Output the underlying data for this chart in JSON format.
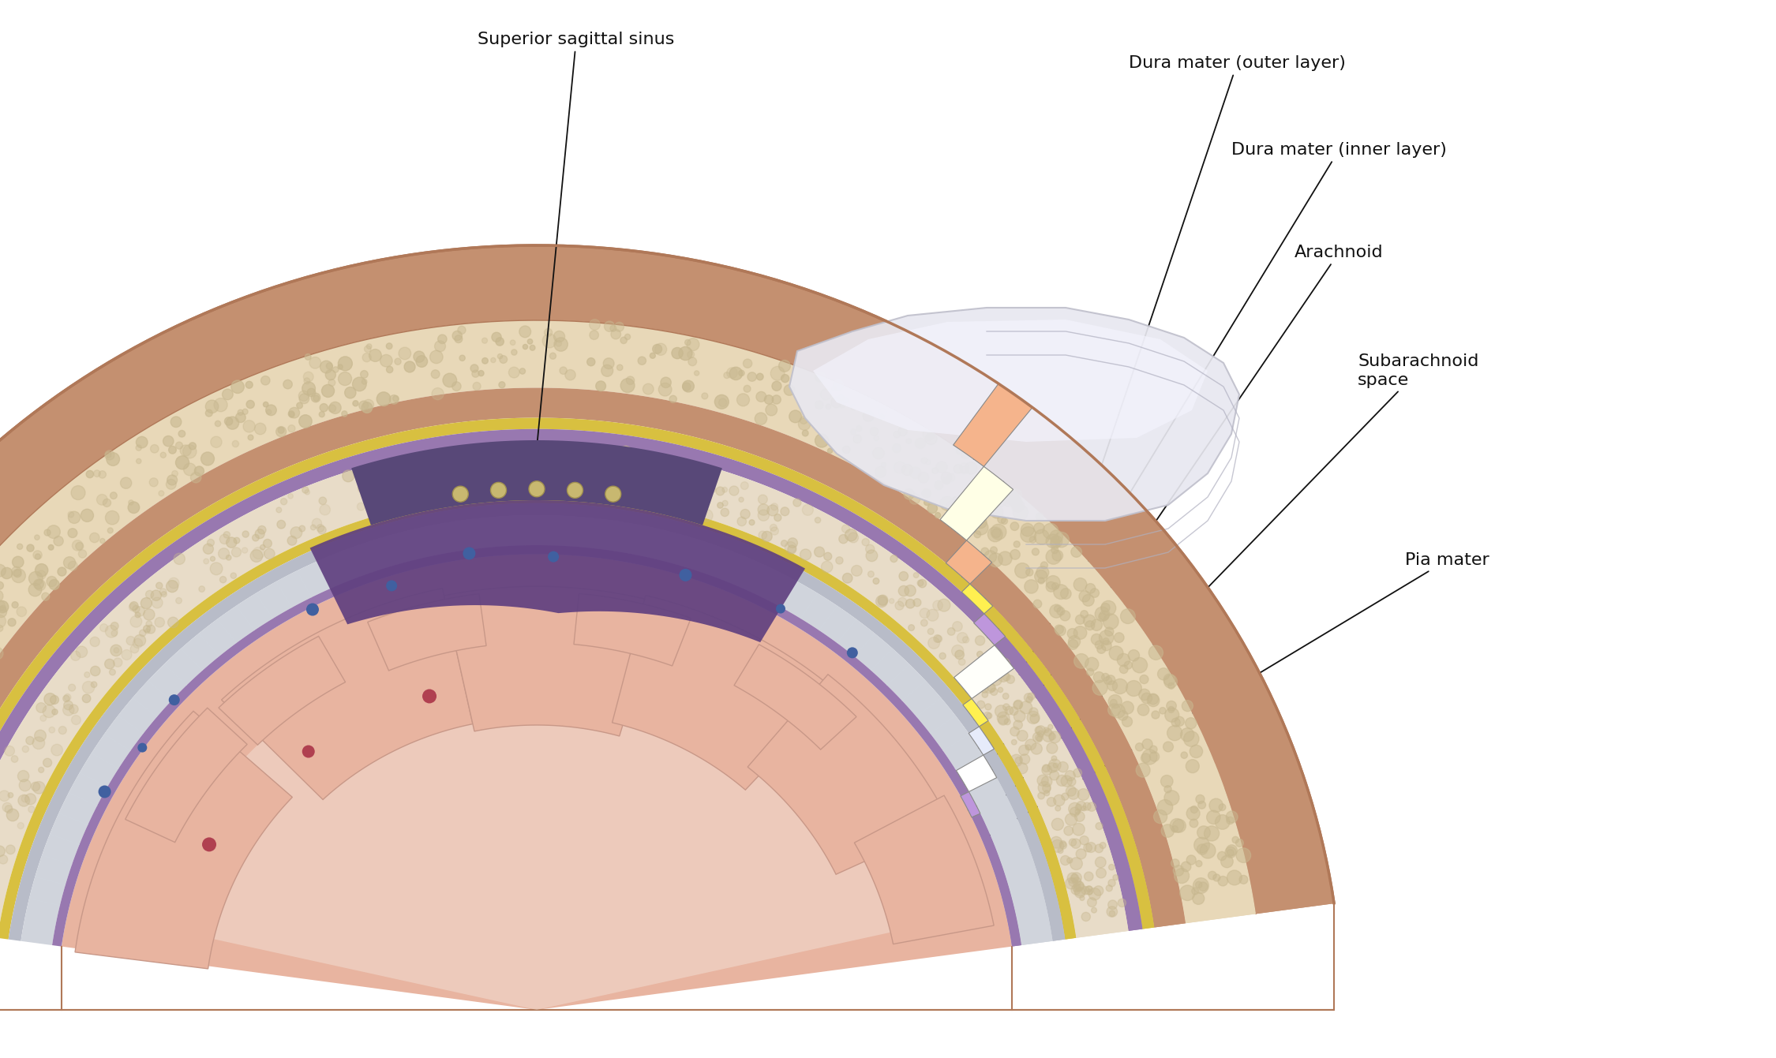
{
  "bg_color": "#ffffff",
  "labels": {
    "superior_sagittal_sinus": "Superior sagittal sinus",
    "dura_outer": "Dura mater (outer layer)",
    "dura_inner": "Dura mater (inner layer)",
    "arachnoid": "Arachnoid",
    "subarachnoid": "Subarachnoid\nspace",
    "pia_mater": "Pia mater"
  },
  "colors": {
    "skull": "#c49070",
    "skull_dark": "#b07858",
    "skull_shadow": "#a06848",
    "spongy_bone": "#e8d8b8",
    "spongy_bone_dark": "#c8b890",
    "yellow_periosteum": "#d8c040",
    "yellow_periosteum2": "#e0c838",
    "purple_dura": "#9878b0",
    "purple_dura2": "#8868a8",
    "dura_cream": "#e8dcc8",
    "dura_cream2": "#f0e8d8",
    "gray_arachnoid": "#b8bcc8",
    "subarachnoid_space": "#d0d4dc",
    "subarachnoid_fluid": "#c0c8d4",
    "pia_purple": "#a080b8",
    "brain_pink": "#e8b4a0",
    "brain_dark_pink": "#d09080",
    "brain_light": "#f0c8b8",
    "brain_sulci": "#c89888",
    "white_matter": "#f5ede5",
    "sinus_purple": "#584878",
    "sinus_dark": "#483868",
    "vessel_blue": "#4060a0",
    "vessel_red": "#b04050",
    "falx_purple": "#604080",
    "arachnoid_white": "#e8e8f0",
    "arachnoid_highlight": "#f5f5ff",
    "shadow_color": "#b09878"
  },
  "annotation_fontsize": 16,
  "figsize": [
    22.5,
    13.41
  ],
  "dpi": 100
}
